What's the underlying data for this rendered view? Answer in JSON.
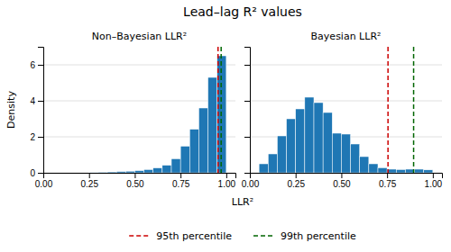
{
  "chart_data": {
    "type": "histogram",
    "title": "Lead–lag R² values",
    "xlabel": "LLR²",
    "ylabel": "Density",
    "xlim": [
      0,
      1.05
    ],
    "xticks": [
      {
        "value": 0,
        "label": "0.00"
      },
      {
        "value": 0.25,
        "label": "0.25"
      },
      {
        "value": 0.5,
        "label": "0.50"
      },
      {
        "value": 0.75,
        "label": "0.75"
      },
      {
        "value": 1,
        "label": "1.00"
      }
    ],
    "ylim": [
      0,
      7
    ],
    "yticks": [
      0,
      2,
      4,
      6
    ],
    "grid": true,
    "legend": "bottom",
    "panels": [
      {
        "title": "Non–Bayesian LLR²",
        "bins": [
          0.0,
          0.05,
          0.1,
          0.15,
          0.2,
          0.25,
          0.3,
          0.35,
          0.4,
          0.45,
          0.5,
          0.55,
          0.6,
          0.65,
          0.7,
          0.75,
          0.8,
          0.85,
          0.9,
          0.95,
          1.0
        ],
        "values": [
          0.0,
          0.0,
          0.0,
          0.0,
          0.0,
          0.02,
          0.04,
          0.05,
          0.07,
          0.09,
          0.12,
          0.18,
          0.27,
          0.42,
          0.78,
          1.48,
          2.42,
          3.6,
          5.3,
          6.5
        ]
      },
      {
        "title": "Bayesian LLR²",
        "bins": [
          0.0,
          0.05,
          0.1,
          0.15,
          0.2,
          0.25,
          0.3,
          0.35,
          0.4,
          0.45,
          0.5,
          0.55,
          0.6,
          0.65,
          0.7,
          0.75,
          0.8,
          0.85,
          0.9,
          0.95,
          1.0
        ],
        "values": [
          0.0,
          0.5,
          1.05,
          2.05,
          3.0,
          3.55,
          4.2,
          3.9,
          3.35,
          2.2,
          2.15,
          1.6,
          0.9,
          0.5,
          0.28,
          0.2,
          0.18,
          0.2,
          0.2,
          0.16
        ],
        "tick_labels": "x"
      }
    ],
    "series": [
      {
        "name": "95th percentile",
        "color": "#CC0000",
        "line_style": "dashed",
        "values": [
          0.955,
          0.755
        ]
      },
      {
        "name": "99th percentile",
        "color": "#006600",
        "line_style": "dashed",
        "values": [
          0.972,
          0.895
        ]
      }
    ]
  }
}
